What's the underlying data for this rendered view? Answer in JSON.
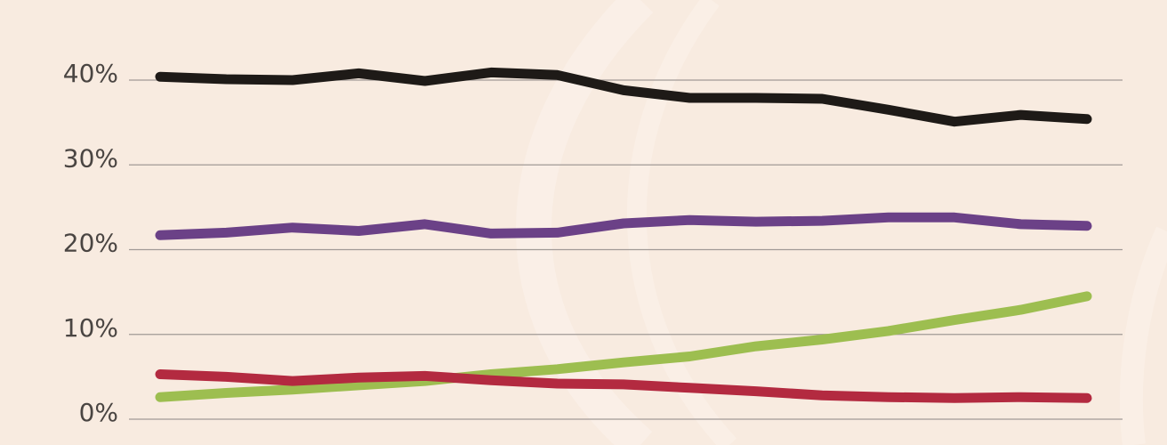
{
  "chart_data": {
    "type": "line",
    "title": "",
    "xlabel": "",
    "ylabel": "",
    "ylim": [
      0,
      40
    ],
    "y_ticks": [
      {
        "value": 0,
        "label": "0%"
      },
      {
        "value": 10,
        "label": "10%"
      },
      {
        "value": 20,
        "label": "20%"
      },
      {
        "value": 30,
        "label": "30%"
      },
      {
        "value": 40,
        "label": "40%"
      }
    ],
    "x": [
      1,
      2,
      3,
      4,
      5,
      6,
      7,
      8,
      9,
      10,
      11,
      12,
      13,
      14,
      15
    ],
    "series": [
      {
        "color": "#1e1a17",
        "values": [
          40.4,
          40.1,
          40.0,
          40.8,
          39.9,
          40.9,
          40.6,
          38.8,
          37.9,
          37.9,
          37.8,
          36.5,
          35.1,
          35.9,
          35.4
        ]
      },
      {
        "color": "#6b4187",
        "values": [
          21.7,
          22.0,
          22.6,
          22.2,
          23.0,
          21.9,
          22.0,
          23.1,
          23.5,
          23.3,
          23.4,
          23.8,
          23.8,
          23.0,
          22.8
        ]
      },
      {
        "color": "#9dbe50",
        "values": [
          2.6,
          3.1,
          3.5,
          4.0,
          4.5,
          5.3,
          5.9,
          6.7,
          7.4,
          8.6,
          9.4,
          10.4,
          11.7,
          12.9,
          14.5
        ]
      },
      {
        "color": "#b32a40",
        "values": [
          5.3,
          5.0,
          4.5,
          4.9,
          5.1,
          4.6,
          4.2,
          4.1,
          3.7,
          3.3,
          2.8,
          2.6,
          2.5,
          2.6,
          2.5
        ]
      }
    ],
    "grid": true,
    "legend": "none"
  },
  "colors": {
    "background": "#f8ebe0",
    "grid": "#a19a96",
    "tick_text": "#4a4542"
  }
}
